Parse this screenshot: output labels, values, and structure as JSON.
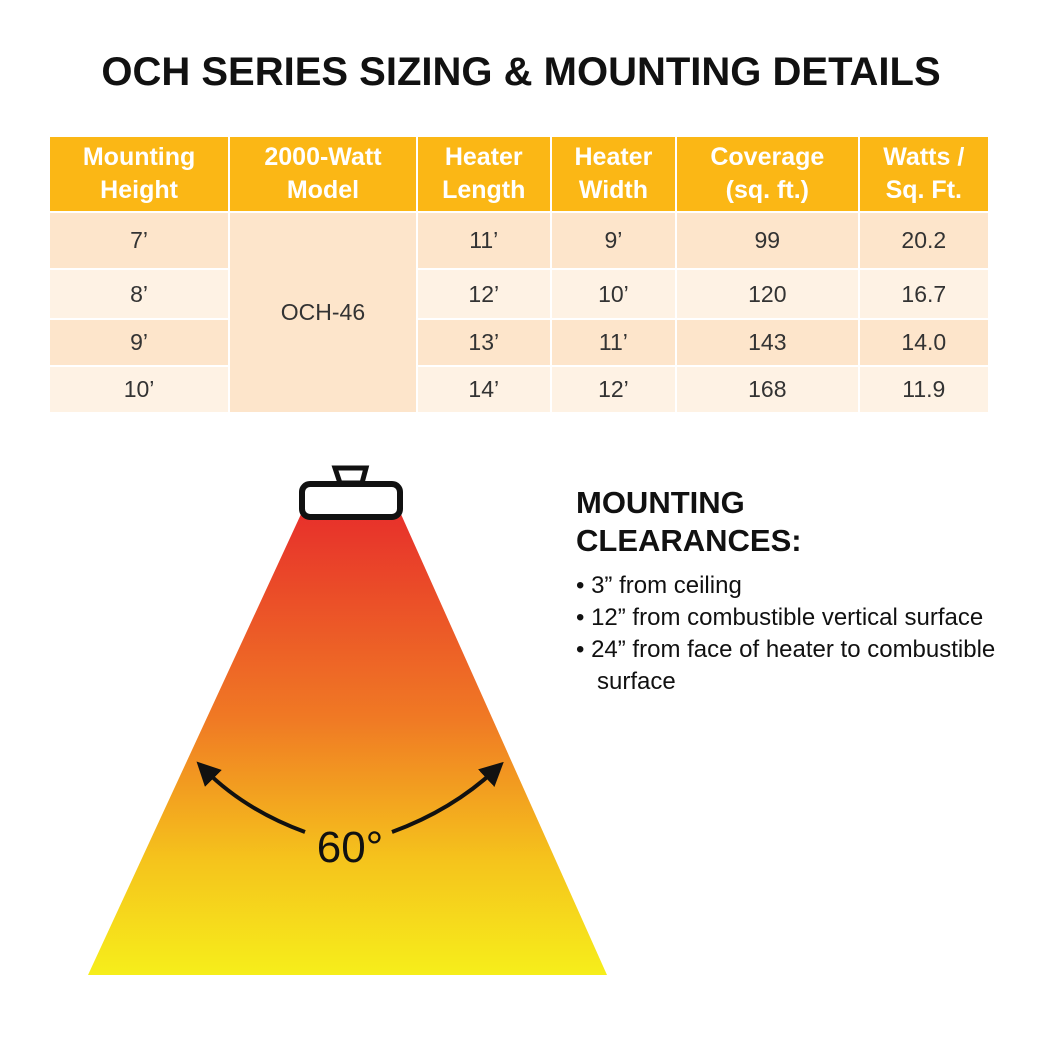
{
  "title": "OCH SERIES SIZING & MOUNTING DETAILS",
  "table": {
    "header": [
      [
        "Mounting",
        "Height"
      ],
      [
        "2000-Watt",
        "Model"
      ],
      [
        "Heater",
        "Length"
      ],
      [
        "Heater",
        "Width"
      ],
      [
        "Coverage",
        "(sq. ft.)"
      ],
      [
        "Watts /",
        "Sq. Ft."
      ]
    ],
    "model": "OCH-46",
    "rows": [
      [
        "7’",
        "11’",
        "9’",
        "99",
        "20.2"
      ],
      [
        "8’",
        "12’",
        "10’",
        "120",
        "16.7"
      ],
      [
        "9’",
        "13’",
        "11’",
        "143",
        "14.0"
      ],
      [
        "10’",
        "14’",
        "12’",
        "168",
        "11.9"
      ]
    ]
  },
  "diagram": {
    "angle_label": "60°"
  },
  "clearances": {
    "heading": "MOUNTING CLEARANCES:",
    "items": [
      "3” from ceiling",
      "12” from combustible vertical surface",
      "24” from face of heater to combustible surface"
    ]
  }
}
